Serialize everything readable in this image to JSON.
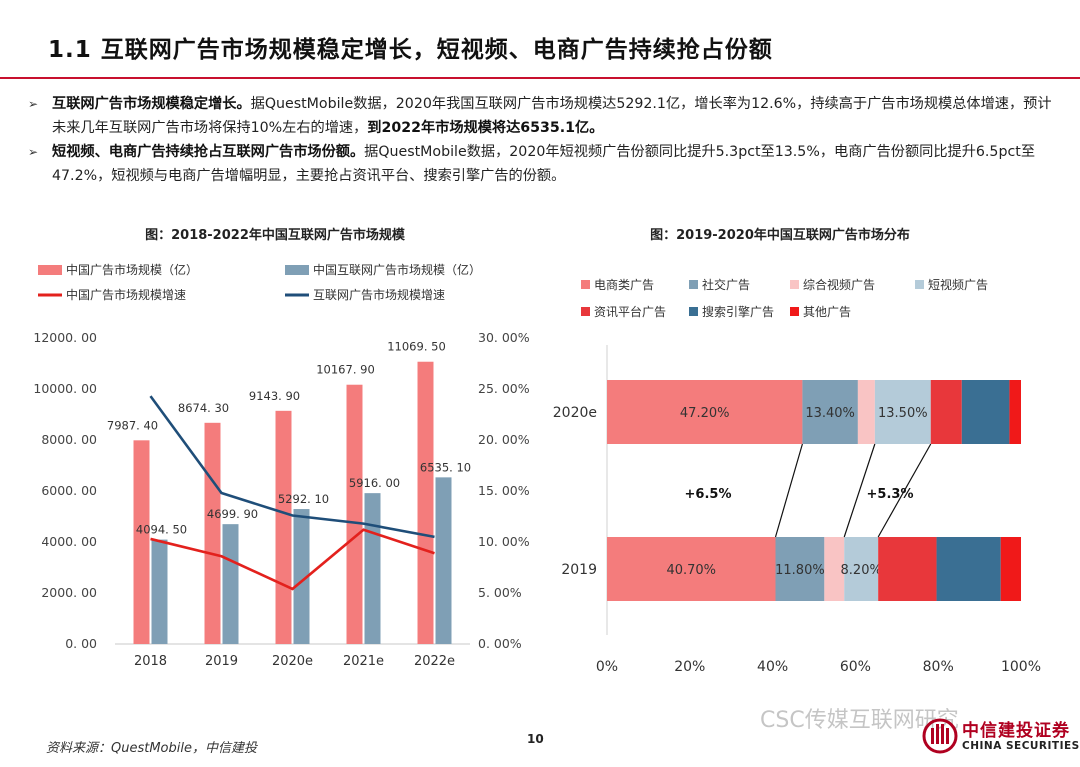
{
  "header": {
    "title": "1.1 互联网广告市场规模稳定增长，短视频、电商广告持续抢占份额"
  },
  "bullets": [
    {
      "lead": "互联网广告市场规模稳定增长。",
      "body": "据QuestMobile数据，2020年我国互联网广告市场规模达5292.1亿，增长率为12.6%，持续高于广告市场规模总体增速，预计未来几年互联网广告市场将保持10%左右的增速，",
      "highlight": "到2022年市场规模将达6535.1亿。"
    },
    {
      "lead": "短视频、电商广告持续抢占互联网广告市场份额。",
      "body": "据QuestMobile数据，2020年短视频广告份额同比提升5.3pct至13.5%，电商广告份额同比提升6.5pct至47.2%，短视频与电商广告增幅明显，主要抢占资讯平台、搜索引擎广告的份额。",
      "highlight": ""
    }
  ],
  "chart_left_title": "图：2018-2022年中国互联网广告市场规模",
  "chart_right_title": "图：2019-2020年中国互联网广告市场分布",
  "chart_data": [
    {
      "type": "bar",
      "title": "图：2018-2022年中国互联网广告市场规模",
      "categories": [
        "2018",
        "2019",
        "2020e",
        "2021e",
        "2022e"
      ],
      "series": [
        {
          "name": "中国广告市场规模（亿）",
          "kind": "bar",
          "axis": "left",
          "color": "#f47c7c",
          "values": [
            7987.4,
            8674.3,
            9143.9,
            10167.9,
            11069.5
          ],
          "labels": [
            "7987. 40",
            "8674. 30",
            "9143. 90",
            "10167. 90",
            "11069. 50"
          ]
        },
        {
          "name": "中国互联网广告市场规模（亿）",
          "kind": "bar",
          "axis": "left",
          "color": "#7f9fb5",
          "values": [
            4094.5,
            4699.9,
            5292.1,
            5916.0,
            6535.1
          ],
          "labels": [
            "4094. 50",
            "4699. 90",
            "5292. 10",
            "5916. 00",
            "6535. 10"
          ]
        },
        {
          "name": "中国广告市场规模增速",
          "kind": "line",
          "axis": "right",
          "color": "#e3211d",
          "values": [
            10.3,
            8.6,
            5.4,
            11.2,
            8.9
          ]
        },
        {
          "name": "互联网广告市场规模增速",
          "kind": "line",
          "axis": "right",
          "color": "#1f4e79",
          "values": [
            24.3,
            14.8,
            12.6,
            11.8,
            10.5
          ]
        }
      ],
      "y_left": {
        "min": 0,
        "max": 12000,
        "ticks": [
          0,
          2000,
          4000,
          6000,
          8000,
          10000,
          12000
        ],
        "tick_labels": [
          "0. 00",
          "2000. 00",
          "4000. 00",
          "6000. 00",
          "8000. 00",
          "10000. 00",
          "12000. 00"
        ]
      },
      "y_right": {
        "min": 0,
        "max": 30,
        "ticks": [
          0,
          5,
          10,
          15,
          20,
          25,
          30
        ],
        "tick_labels": [
          "0. 00%",
          "5. 00%",
          "10. 00%",
          "15. 00%",
          "20. 00%",
          "25. 00%",
          "30. 00%"
        ]
      },
      "grid": false,
      "legend": "top"
    },
    {
      "type": "bar",
      "orientation": "horizontal",
      "stacked": true,
      "title": "图：2019-2020年中国互联网广告市场分布",
      "categories": [
        "2020e",
        "2019"
      ],
      "segments": [
        {
          "name": "电商类广告",
          "color": "#f47c7c",
          "values": [
            47.2,
            40.7
          ],
          "labels": [
            "47.20%",
            "40.70%"
          ]
        },
        {
          "name": "社交广告",
          "color": "#7f9fb5",
          "values": [
            13.4,
            11.8
          ],
          "labels": [
            "13.40%",
            "11.80%"
          ]
        },
        {
          "name": "综合视频广告",
          "color": "#f9c4c4",
          "values": [
            4.1,
            4.8
          ],
          "labels": [
            "",
            ""
          ]
        },
        {
          "name": "短视频广告",
          "color": "#b4cbd9",
          "values": [
            13.5,
            8.2
          ],
          "labels": [
            "13.50%",
            "8.20%"
          ]
        },
        {
          "name": "资讯平台广告",
          "color": "#e8373b",
          "values": [
            7.5,
            14.1
          ],
          "labels": [
            "",
            ""
          ]
        },
        {
          "name": "搜索引擎广告",
          "color": "#3a6f93",
          "values": [
            11.5,
            15.5
          ],
          "labels": [
            "",
            ""
          ]
        },
        {
          "name": "其他广告",
          "color": "#f01919",
          "values": [
            2.8,
            4.9
          ],
          "labels": [
            "",
            ""
          ]
        }
      ],
      "x_axis": {
        "min": 0,
        "max": 100,
        "ticks": [
          0,
          20,
          40,
          60,
          80,
          100
        ],
        "tick_labels": [
          "0%",
          "20%",
          "40%",
          "60%",
          "80%",
          "100%"
        ]
      },
      "annotations": [
        "+6.5%",
        "+5.3%"
      ],
      "legend": "top"
    }
  ],
  "footer": {
    "source": "资料来源：QuestMobile，中信建投",
    "page_number": "10",
    "watermark": "CSC传媒互联网研究",
    "logo_cn": "中信建投证券",
    "logo_en": "CHINA SECURITIES"
  }
}
